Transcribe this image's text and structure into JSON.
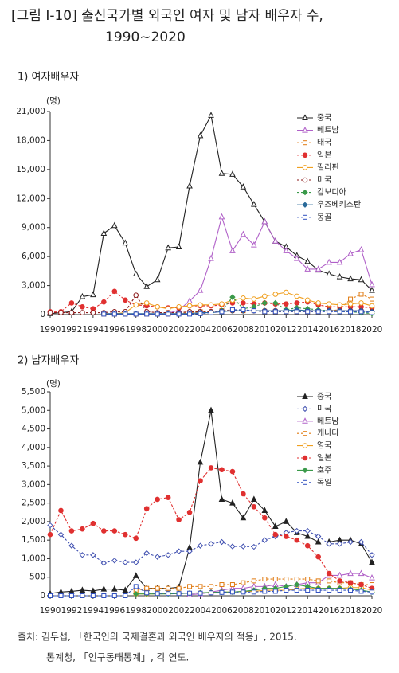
{
  "header": {
    "title": [
      "[그림 Ⅰ-10] 출신국가별 외국인 여자 및 남자 배우자 수,",
      "1990~2020"
    ]
  },
  "source": [
    "출처: 김두섭, 「한국인의 국제결혼과 외국인 배우자의 적응」, 2015.",
    "통계청, 「인구동태통계」, 각 연도."
  ],
  "chart_data": [
    {
      "type": "line",
      "title": "1) 여자배우자",
      "ylabel": "(명)",
      "x": [
        1990,
        1991,
        1992,
        1993,
        1994,
        1995,
        1996,
        1997,
        1998,
        1999,
        2000,
        2001,
        2002,
        2003,
        2004,
        2005,
        2006,
        2007,
        2008,
        2009,
        2010,
        2011,
        2012,
        2013,
        2014,
        2015,
        2016,
        2017,
        2018,
        2019,
        2020
      ],
      "xlim": [
        1990,
        2020
      ],
      "xticks": [
        1990,
        1992,
        1994,
        1996,
        1998,
        2000,
        2002,
        2004,
        2006,
        2008,
        2010,
        2012,
        2014,
        2016,
        2018,
        2020
      ],
      "ylim": [
        0,
        21000
      ],
      "yticks": [
        0,
        {
          "value": 3000,
          "label": "3,000"
        },
        {
          "value": 6000,
          "label": "6,000"
        },
        {
          "value": 9000,
          "label": "9,000"
        },
        {
          "value": 12000,
          "label": "12,000"
        },
        {
          "value": 15000,
          "label": "15,000"
        },
        {
          "value": 18000,
          "label": "18,000"
        },
        {
          "value": 21000,
          "label": "21,000"
        }
      ],
      "legend": "upper right",
      "series": [
        {
          "name": "중국",
          "color": "#222222",
          "marker": "triangle",
          "filled": false,
          "dashed": false,
          "values": [
            100,
            200,
            300,
            1850,
            2050,
            8400,
            9200,
            7400,
            4200,
            2900,
            3600,
            6900,
            7000,
            13300,
            18500,
            20600,
            14600,
            14500,
            13200,
            11400,
            9600,
            7600,
            7000,
            6100,
            5500,
            4600,
            4200,
            3900,
            3700,
            3600,
            2500
          ]
        },
        {
          "name": "베트남",
          "color": "#b060c8",
          "marker": "triangle",
          "filled": false,
          "dashed": false,
          "values": [
            null,
            null,
            null,
            null,
            null,
            null,
            null,
            null,
            null,
            null,
            null,
            130,
            470,
            1400,
            2500,
            5800,
            10100,
            6600,
            8300,
            7200,
            9600,
            7600,
            6600,
            5800,
            4700,
            4700,
            5400,
            5400,
            6300,
            6700,
            3100
          ]
        },
        {
          "name": "태국",
          "color": "#e07a10",
          "marker": "square",
          "filled": false,
          "dashed": true,
          "values": [
            null,
            null,
            null,
            null,
            null,
            50,
            50,
            50,
            50,
            50,
            50,
            50,
            100,
            200,
            300,
            300,
            400,
            500,
            400,
            400,
            300,
            300,
            300,
            300,
            300,
            300,
            400,
            500,
            1600,
            2100,
            1600
          ]
        },
        {
          "name": "일본",
          "color": "#e03030",
          "marker": "circle",
          "filled": true,
          "dashed": true,
          "values": [
            300,
            300,
            1200,
            800,
            600,
            1300,
            2400,
            1500,
            1000,
            900,
            800,
            700,
            700,
            900,
            900,
            900,
            1000,
            1200,
            1200,
            1100,
            1200,
            1100,
            1100,
            1200,
            1300,
            1000,
            800,
            800,
            800,
            800,
            700
          ]
        },
        {
          "name": "필리핀",
          "color": "#f0a020",
          "marker": "circle",
          "filled": false,
          "dashed": false,
          "values": [
            null,
            null,
            null,
            null,
            null,
            100,
            100,
            200,
            1000,
            1200,
            800,
            600,
            800,
            900,
            1000,
            1000,
            1100,
            1500,
            1700,
            1600,
            1900,
            2100,
            2300,
            1900,
            1500,
            1200,
            1100,
            1000,
            1100,
            1200,
            900
          ]
        },
        {
          "name": "미국",
          "color": "#8b1a1a",
          "marker": "circle",
          "filled": false,
          "dashed": true,
          "values": [
            200,
            200,
            200,
            200,
            200,
            200,
            300,
            300,
            2000,
            300,
            200,
            200,
            200,
            300,
            300,
            300,
            400,
            400,
            400,
            400,
            400,
            400,
            400,
            400,
            400,
            400,
            400,
            400,
            400,
            400,
            300
          ]
        },
        {
          "name": "캄보디아",
          "color": "#3a9a4a",
          "marker": "diamond",
          "filled": true,
          "dashed": true,
          "values": [
            null,
            null,
            null,
            null,
            null,
            null,
            null,
            null,
            null,
            null,
            null,
            null,
            null,
            null,
            null,
            null,
            400,
            1800,
            600,
            800,
            1200,
            1200,
            500,
            700,
            600,
            500,
            400,
            300,
            300,
            200,
            100
          ]
        },
        {
          "name": "우즈베키스탄",
          "color": "#2a6a9a",
          "marker": "diamond",
          "filled": true,
          "dashed": false,
          "values": [
            null,
            null,
            null,
            null,
            null,
            100,
            100,
            100,
            100,
            100,
            100,
            100,
            100,
            100,
            200,
            200,
            300,
            400,
            400,
            400,
            400,
            400,
            400,
            500,
            400,
            400,
            400,
            400,
            400,
            400,
            300
          ]
        },
        {
          "name": "몽골",
          "color": "#3050c0",
          "marker": "square",
          "filled": false,
          "dashed": true,
          "values": [
            null,
            null,
            null,
            null,
            null,
            50,
            50,
            50,
            50,
            50,
            50,
            50,
            50,
            50,
            100,
            200,
            300,
            500,
            500,
            400,
            300,
            300,
            300,
            300,
            300,
            300,
            300,
            300,
            300,
            300,
            200
          ]
        }
      ]
    },
    {
      "type": "line",
      "title": "2) 남자배우자",
      "ylabel": "(명)",
      "x": [
        1990,
        1991,
        1992,
        1993,
        1994,
        1995,
        1996,
        1997,
        1998,
        1999,
        2000,
        2001,
        2002,
        2003,
        2004,
        2005,
        2006,
        2007,
        2008,
        2009,
        2010,
        2011,
        2012,
        2013,
        2014,
        2015,
        2016,
        2017,
        2018,
        2019,
        2020
      ],
      "xlim": [
        1990,
        2020
      ],
      "xticks": [
        1990,
        1992,
        1994,
        1996,
        1998,
        2000,
        2002,
        2004,
        2006,
        2008,
        2010,
        2012,
        2014,
        2016,
        2018,
        2020
      ],
      "ylim": [
        0,
        5500
      ],
      "yticks": [
        0,
        500,
        {
          "value": 1000,
          "label": "1,000"
        },
        {
          "value": 1500,
          "label": "1,500"
        },
        {
          "value": 2000,
          "label": "2,000"
        },
        {
          "value": 2500,
          "label": "2,500"
        },
        {
          "value": 3000,
          "label": "3,000"
        },
        {
          "value": 3500,
          "label": "3,500"
        },
        {
          "value": 4000,
          "label": "4,000"
        },
        {
          "value": 4500,
          "label": "4,500"
        },
        {
          "value": 5000,
          "label": "5,000"
        },
        {
          "value": 5500,
          "label": "5,500"
        }
      ],
      "legend": "upper right",
      "series": [
        {
          "name": "중국",
          "color": "#222222",
          "marker": "triangle",
          "filled": true,
          "dashed": false,
          "values": [
            60,
            100,
            120,
            150,
            130,
            180,
            180,
            150,
            540,
            200,
            200,
            200,
            230,
            1300,
            3600,
            5000,
            2600,
            2500,
            2100,
            2600,
            2300,
            1870,
            2000,
            1700,
            1600,
            1450,
            1450,
            1500,
            1500,
            1400,
            900
          ]
        },
        {
          "name": "미국",
          "color": "#4050b0",
          "marker": "diamond",
          "filled": false,
          "dashed": true,
          "values": [
            1900,
            1650,
            1350,
            1100,
            1100,
            880,
            950,
            900,
            900,
            1150,
            1050,
            1100,
            1200,
            1200,
            1350,
            1400,
            1450,
            1330,
            1330,
            1320,
            1500,
            1600,
            1700,
            1750,
            1750,
            1600,
            1400,
            1400,
            1450,
            1450,
            1100
          ]
        },
        {
          "name": "베트남",
          "color": "#b060c8",
          "marker": "triangle",
          "filled": false,
          "dashed": false,
          "values": [
            null,
            null,
            null,
            null,
            null,
            null,
            null,
            null,
            null,
            null,
            null,
            null,
            null,
            30,
            50,
            100,
            150,
            200,
            200,
            250,
            250,
            300,
            250,
            300,
            350,
            350,
            550,
            550,
            600,
            600,
            480
          ]
        },
        {
          "name": "캐나다",
          "color": "#e07a10",
          "marker": "square",
          "filled": false,
          "dashed": true,
          "values": [
            null,
            null,
            null,
            null,
            null,
            null,
            null,
            null,
            150,
            200,
            200,
            200,
            200,
            250,
            250,
            250,
            300,
            300,
            350,
            400,
            450,
            450,
            450,
            450,
            450,
            400,
            400,
            350,
            350,
            300,
            300
          ]
        },
        {
          "name": "영국",
          "color": "#f0a020",
          "marker": "circle",
          "filled": false,
          "dashed": false,
          "values": [
            null,
            null,
            null,
            null,
            null,
            null,
            null,
            null,
            50,
            50,
            50,
            60,
            60,
            70,
            80,
            90,
            100,
            100,
            120,
            120,
            150,
            150,
            150,
            180,
            200,
            200,
            200,
            200,
            220,
            220,
            150
          ]
        },
        {
          "name": "일본",
          "color": "#e03030",
          "marker": "circle",
          "filled": true,
          "dashed": true,
          "values": [
            1650,
            2300,
            1750,
            1800,
            1950,
            1750,
            1750,
            1650,
            1550,
            2350,
            2600,
            2650,
            2050,
            2250,
            3100,
            3450,
            3400,
            3350,
            2750,
            2400,
            2100,
            1650,
            1600,
            1500,
            1350,
            1050,
            600,
            400,
            350,
            300,
            200
          ]
        },
        {
          "name": "호주",
          "color": "#3a9a4a",
          "marker": "diamond",
          "filled": true,
          "dashed": false,
          "values": [
            null,
            null,
            null,
            null,
            null,
            null,
            null,
            null,
            50,
            50,
            50,
            50,
            60,
            70,
            80,
            90,
            100,
            100,
            120,
            150,
            200,
            200,
            250,
            300,
            250,
            200,
            200,
            200,
            180,
            150,
            100
          ]
        },
        {
          "name": "독일",
          "color": "#3050c0",
          "marker": "square",
          "filled": false,
          "dashed": true,
          "values": [
            0,
            0,
            0,
            0,
            0,
            0,
            0,
            0,
            250,
            80,
            60,
            60,
            60,
            70,
            70,
            80,
            90,
            100,
            100,
            100,
            120,
            120,
            150,
            150,
            150,
            150,
            150,
            150,
            150,
            120,
            100
          ]
        }
      ]
    }
  ]
}
